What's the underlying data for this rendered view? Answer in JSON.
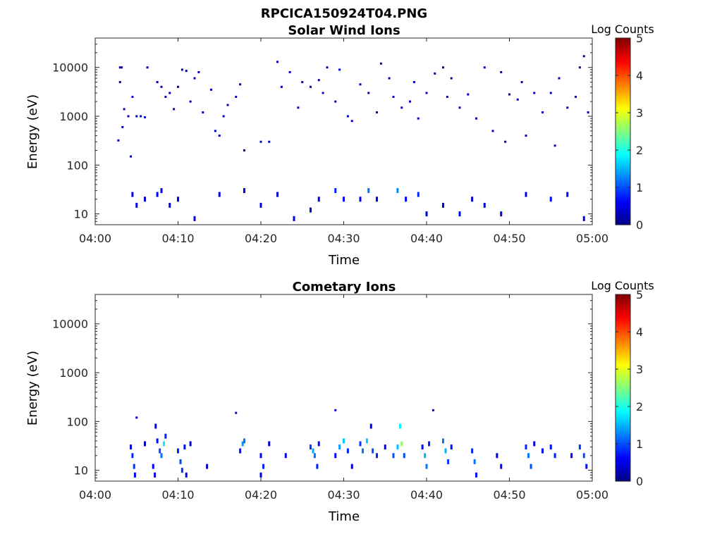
{
  "figure_title": "RPCICA150924T04.PNG",
  "chart_data": [
    {
      "type": "heatmap",
      "title": "Solar Wind Ions",
      "xlabel": "Time",
      "ylabel": "Energy (eV)",
      "x_ticks": [
        "04:00",
        "04:10",
        "04:20",
        "04:30",
        "04:40",
        "04:50",
        "05:00"
      ],
      "xlim": [
        "04:00",
        "05:00"
      ],
      "y_scale": "log",
      "y_ticks": [
        "10",
        "100",
        "1000",
        "10000"
      ],
      "ylim": [
        6,
        40000
      ],
      "colorbar": {
        "label": "Log Counts",
        "ticks": [
          "0",
          "1",
          "2",
          "3",
          "4",
          "5"
        ],
        "range": [
          0,
          5
        ],
        "colormap": "jet"
      },
      "cells": [
        [
          3.0,
          10000,
          0.3
        ],
        [
          3.2,
          10000,
          0.3
        ],
        [
          3.5,
          1400,
          0.3
        ],
        [
          4.0,
          1000,
          0.3
        ],
        [
          4.5,
          2500,
          0.3
        ],
        [
          3.0,
          5000,
          0.3
        ],
        [
          3.3,
          600,
          0.3
        ],
        [
          2.8,
          320,
          0.3
        ],
        [
          4.3,
          150,
          0.3
        ],
        [
          5.0,
          1000,
          0.3
        ],
        [
          5.5,
          1000,
          0.3
        ],
        [
          6.0,
          950,
          0.3
        ],
        [
          6.3,
          10000,
          0.3
        ],
        [
          7.5,
          5000,
          0.3
        ],
        [
          8.0,
          4000,
          0.3
        ],
        [
          8.5,
          2500,
          0.3
        ],
        [
          9.0,
          3000,
          0.3
        ],
        [
          9.5,
          1400,
          0.3
        ],
        [
          10.0,
          4000,
          0.3
        ],
        [
          10.5,
          9000,
          0.3
        ],
        [
          11.0,
          8500,
          0.3
        ],
        [
          12.0,
          6000,
          0.3
        ],
        [
          12.5,
          8000,
          0.3
        ],
        [
          11.5,
          2000,
          0.3
        ],
        [
          13.0,
          1200,
          0.3
        ],
        [
          14.0,
          3500,
          0.3
        ],
        [
          14.5,
          500,
          0.3
        ],
        [
          15.0,
          400,
          0.3
        ],
        [
          16.0,
          1700,
          0.3
        ],
        [
          17.0,
          2500,
          0.3
        ],
        [
          17.5,
          4500,
          0.3
        ],
        [
          15.5,
          1000,
          0.3
        ],
        [
          18.0,
          200,
          0.3
        ],
        [
          20.0,
          300,
          0.3
        ],
        [
          21.0,
          300,
          0.3
        ],
        [
          22.0,
          13000,
          0.3
        ],
        [
          22.5,
          4000,
          0.3
        ],
        [
          23.5,
          8000,
          0.3
        ],
        [
          24.5,
          1500,
          0.3
        ],
        [
          25.0,
          5000,
          0.3
        ],
        [
          26.0,
          4000,
          0.3
        ],
        [
          27.0,
          5500,
          0.3
        ],
        [
          27.5,
          3000,
          0.3
        ],
        [
          28.0,
          10000,
          0.3
        ],
        [
          29.0,
          2000,
          0.3
        ],
        [
          29.5,
          9000,
          0.3
        ],
        [
          30.5,
          1000,
          0.3
        ],
        [
          31.0,
          800,
          0.3
        ],
        [
          32.0,
          4500,
          0.3
        ],
        [
          33.0,
          3000,
          0.3
        ],
        [
          34.0,
          1200,
          0.3
        ],
        [
          34.5,
          12000,
          0.3
        ],
        [
          35.5,
          6000,
          0.3
        ],
        [
          36.0,
          2500,
          0.3
        ],
        [
          37.0,
          1500,
          0.3
        ],
        [
          38.0,
          2000,
          0.3
        ],
        [
          38.5,
          5000,
          0.3
        ],
        [
          39.0,
          900,
          0.3
        ],
        [
          40.0,
          3000,
          0.3
        ],
        [
          41.0,
          7500,
          0.3
        ],
        [
          42.0,
          10000,
          0.3
        ],
        [
          42.5,
          2500,
          0.3
        ],
        [
          43.0,
          6000,
          0.3
        ],
        [
          44.0,
          1500,
          0.3
        ],
        [
          45.0,
          2800,
          0.3
        ],
        [
          46.0,
          900,
          0.3
        ],
        [
          47.0,
          10000,
          0.3
        ],
        [
          48.0,
          500,
          0.3
        ],
        [
          49.0,
          8000,
          0.3
        ],
        [
          49.5,
          300,
          0.3
        ],
        [
          50.0,
          2800,
          0.3
        ],
        [
          51.0,
          2200,
          0.3
        ],
        [
          51.5,
          5000,
          0.3
        ],
        [
          52.0,
          400,
          0.3
        ],
        [
          53.0,
          3000,
          0.3
        ],
        [
          54.0,
          1200,
          0.3
        ],
        [
          55.0,
          3000,
          0.3
        ],
        [
          55.5,
          250,
          0.3
        ],
        [
          56.0,
          6000,
          0.3
        ],
        [
          57.0,
          1500,
          0.3
        ],
        [
          58.0,
          2500,
          0.3
        ],
        [
          58.5,
          10000,
          0.3
        ],
        [
          59.0,
          17000,
          0.3
        ],
        [
          59.5,
          1200,
          0.3
        ],
        [
          4.5,
          25,
          0.5
        ],
        [
          5.0,
          15,
          0.5
        ],
        [
          6.0,
          20,
          0.4
        ],
        [
          7.5,
          25,
          0.6
        ],
        [
          8.0,
          30,
          0.6
        ],
        [
          9.0,
          15,
          0.5
        ],
        [
          10.0,
          20,
          0.5
        ],
        [
          12.0,
          8,
          0.4
        ],
        [
          15.0,
          25,
          0.4
        ],
        [
          18.0,
          30,
          0.4
        ],
        [
          20.0,
          15,
          0.5
        ],
        [
          22.0,
          25,
          0.4
        ],
        [
          24.0,
          8,
          0.4
        ],
        [
          26.0,
          12,
          0.4
        ],
        [
          27.0,
          20,
          0.5
        ],
        [
          29.0,
          30,
          0.8
        ],
        [
          30.0,
          20,
          0.6
        ],
        [
          32.0,
          20,
          0.5
        ],
        [
          33.0,
          30,
          1.2
        ],
        [
          34.0,
          20,
          0.6
        ],
        [
          36.5,
          30,
          1.3
        ],
        [
          37.5,
          20,
          0.6
        ],
        [
          39.0,
          25,
          0.8
        ],
        [
          40.0,
          10,
          0.5
        ],
        [
          42.0,
          15,
          0.4
        ],
        [
          44.0,
          10,
          0.5
        ],
        [
          45.5,
          20,
          0.4
        ],
        [
          47.0,
          15,
          0.4
        ],
        [
          49.0,
          10,
          0.5
        ],
        [
          52.0,
          25,
          0.5
        ],
        [
          55.0,
          20,
          0.7
        ],
        [
          57.0,
          25,
          0.6
        ],
        [
          59.0,
          8,
          0.5
        ]
      ]
    },
    {
      "type": "heatmap",
      "title": "Cometary Ions",
      "xlabel": "Time",
      "ylabel": "Energy (eV)",
      "x_ticks": [
        "04:00",
        "04:10",
        "04:20",
        "04:30",
        "04:40",
        "04:50",
        "05:00"
      ],
      "xlim": [
        "04:00",
        "05:00"
      ],
      "y_scale": "log",
      "y_ticks": [
        "10",
        "100",
        "1000",
        "10000"
      ],
      "ylim": [
        6,
        40000
      ],
      "colorbar": {
        "label": "Log Counts",
        "ticks": [
          "0",
          "1",
          "2",
          "3",
          "4",
          "5"
        ],
        "range": [
          0,
          5
        ],
        "colormap": "jet"
      },
      "cells": [
        [
          4.3,
          30,
          0.5
        ],
        [
          4.5,
          20,
          0.8
        ],
        [
          4.7,
          12,
          0.9
        ],
        [
          4.8,
          8,
          0.6
        ],
        [
          5.0,
          120,
          0.3
        ],
        [
          6.0,
          35,
          0.4
        ],
        [
          7.3,
          80,
          0.5
        ],
        [
          7.5,
          40,
          0.7
        ],
        [
          7.8,
          25,
          1.0
        ],
        [
          8.0,
          20,
          1.2
        ],
        [
          8.3,
          35,
          1.8
        ],
        [
          8.5,
          50,
          0.8
        ],
        [
          7.0,
          12,
          0.6
        ],
        [
          7.2,
          8,
          0.6
        ],
        [
          10.0,
          25,
          0.8
        ],
        [
          10.3,
          15,
          1.0
        ],
        [
          10.5,
          10,
          0.9
        ],
        [
          10.8,
          30,
          0.7
        ],
        [
          11.0,
          8,
          0.6
        ],
        [
          11.5,
          35,
          0.4
        ],
        [
          13.5,
          12,
          0.4
        ],
        [
          17.0,
          150,
          0.3
        ],
        [
          17.5,
          25,
          0.7
        ],
        [
          17.8,
          35,
          1.4
        ],
        [
          18.0,
          40,
          1.2
        ],
        [
          20.0,
          20,
          0.6
        ],
        [
          20.3,
          12,
          0.8
        ],
        [
          20.0,
          8,
          0.5
        ],
        [
          21.0,
          35,
          0.4
        ],
        [
          23.0,
          20,
          0.6
        ],
        [
          26.0,
          30,
          0.9
        ],
        [
          26.3,
          25,
          1.5
        ],
        [
          26.5,
          20,
          1.2
        ],
        [
          26.8,
          12,
          0.8
        ],
        [
          27.0,
          35,
          0.7
        ],
        [
          29.0,
          170,
          0.3
        ],
        [
          29.0,
          20,
          0.6
        ],
        [
          29.5,
          30,
          1.4
        ],
        [
          30.0,
          40,
          1.6
        ],
        [
          30.5,
          25,
          0.8
        ],
        [
          31.0,
          12,
          0.5
        ],
        [
          32.0,
          35,
          0.9
        ],
        [
          32.3,
          25,
          1.2
        ],
        [
          32.8,
          40,
          1.6
        ],
        [
          33.3,
          80,
          0.5
        ],
        [
          33.5,
          25,
          1.0
        ],
        [
          34.0,
          20,
          0.8
        ],
        [
          35.0,
          30,
          0.6
        ],
        [
          36.0,
          20,
          1.0
        ],
        [
          36.5,
          30,
          1.6
        ],
        [
          36.8,
          80,
          1.8
        ],
        [
          37.0,
          35,
          2.6
        ],
        [
          37.3,
          20,
          1.0
        ],
        [
          39.5,
          30,
          0.7
        ],
        [
          39.8,
          20,
          1.5
        ],
        [
          40.0,
          12,
          1.2
        ],
        [
          40.3,
          35,
          0.8
        ],
        [
          40.8,
          170,
          0.3
        ],
        [
          42.0,
          40,
          1.2
        ],
        [
          42.3,
          25,
          1.5
        ],
        [
          42.6,
          15,
          0.9
        ],
        [
          43.0,
          30,
          0.7
        ],
        [
          45.5,
          25,
          0.8
        ],
        [
          45.8,
          15,
          1.2
        ],
        [
          46.0,
          8,
          0.7
        ],
        [
          48.5,
          20,
          0.5
        ],
        [
          49.0,
          12,
          0.6
        ],
        [
          52.0,
          30,
          0.8
        ],
        [
          52.3,
          20,
          1.2
        ],
        [
          52.6,
          12,
          1.0
        ],
        [
          53.0,
          35,
          0.5
        ],
        [
          54.0,
          25,
          0.6
        ],
        [
          55.0,
          30,
          0.7
        ],
        [
          55.5,
          20,
          0.8
        ],
        [
          57.5,
          20,
          0.6
        ],
        [
          58.5,
          30,
          0.9
        ],
        [
          59.0,
          20,
          1.0
        ],
        [
          59.3,
          12,
          0.7
        ]
      ]
    }
  ]
}
